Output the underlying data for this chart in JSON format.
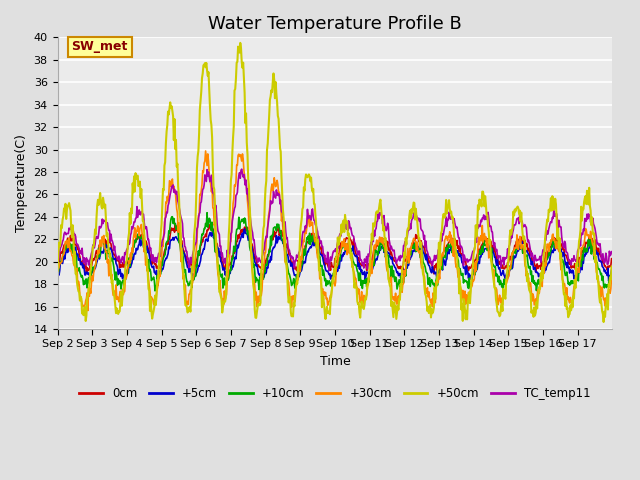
{
  "title": "Water Temperature Profile B",
  "xlabel": "Time",
  "ylabel": "Temperature(C)",
  "ylim": [
    14,
    40
  ],
  "yticks": [
    14,
    16,
    18,
    20,
    22,
    24,
    26,
    28,
    30,
    32,
    34,
    36,
    38,
    40
  ],
  "series_colors": [
    "#cc0000",
    "#0000cc",
    "#00aa00",
    "#ff8800",
    "#cccc00",
    "#aa00aa"
  ],
  "line_widths": [
    1.2,
    1.2,
    1.2,
    1.2,
    1.5,
    1.2
  ],
  "annotation_text": "SW_met",
  "annotation_box_facecolor": "#ffff99",
  "annotation_box_edgecolor": "#cc8800",
  "annotation_text_color": "#880000",
  "fig_facecolor": "#e0e0e0",
  "axes_facecolor": "#ebebeb",
  "grid_color": "#ffffff",
  "title_fontsize": 13,
  "axis_label_fontsize": 9,
  "tick_fontsize": 8,
  "x_tick_labels": [
    "Sep 2",
    "Sep 3",
    "Sep 4",
    "Sep 5",
    "Sep 6",
    "Sep 7",
    "Sep 8",
    "Sep 9",
    "Sep 10",
    "Sep 11",
    "Sep 12",
    "Sep 13",
    "Sep 14",
    "Sep 15",
    "Sep 16",
    "Sep 17"
  ],
  "n_days": 16,
  "pts_per_day": 48,
  "legend_labels": [
    "0cm",
    "+5cm",
    "+10cm",
    "+30cm",
    "+50cm",
    "TC_temp11"
  ]
}
